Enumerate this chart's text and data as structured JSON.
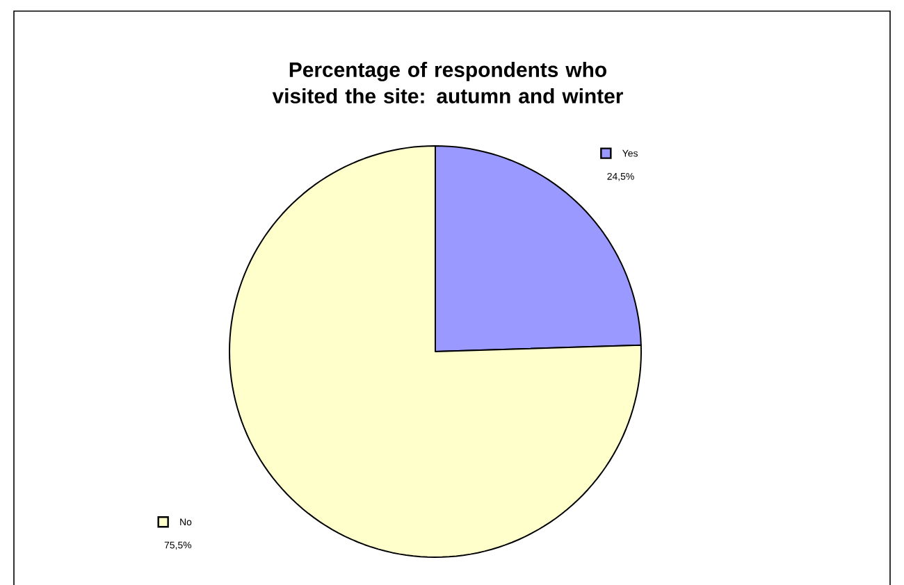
{
  "chart_data": {
    "type": "pie",
    "title": "Percentage of respondents who visited the site:  autumn and winter",
    "categories": [
      "Yes",
      "No"
    ],
    "values": [
      24.5,
      75.5
    ],
    "colors": [
      "#9999ff",
      "#ffffcc"
    ],
    "value_labels": [
      "24,5%",
      "75,5%"
    ],
    "legend": "top left"
  }
}
